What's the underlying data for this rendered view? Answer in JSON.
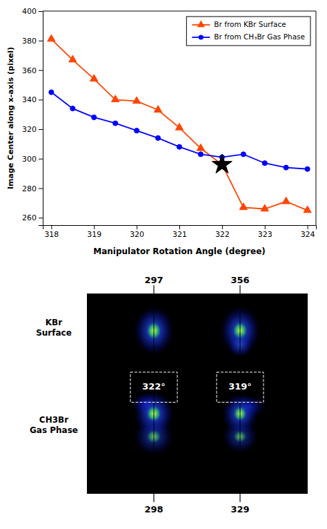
{
  "chart_data": [
    {
      "type": "line",
      "xlabel": "Manipulator Rotation Angle (degree)",
      "ylabel": "Image Center along x-axis (pixel)",
      "xlim": [
        317.8,
        324.2
      ],
      "ylim": [
        255,
        400
      ],
      "xticks": [
        318,
        319,
        320,
        321,
        322,
        323,
        324
      ],
      "yticks": [
        260,
        280,
        300,
        320,
        340,
        360,
        380,
        400
      ],
      "legend": "upper right",
      "series": [
        {
          "name": "Br from KBr Surface",
          "color": "#FF4500",
          "marker": "triangle",
          "x": [
            318.0,
            318.5,
            319.0,
            319.5,
            320.0,
            320.5,
            321.0,
            321.5,
            322.0,
            322.5,
            323.0,
            323.5,
            324.0
          ],
          "values": [
            381,
            367,
            354,
            340,
            339,
            333,
            321,
            307,
            296,
            267,
            266,
            271,
            265
          ]
        },
        {
          "name": "Br from CH₃Br Gas Phase",
          "color": "#0000FF",
          "marker": "circle",
          "x": [
            318.0,
            318.5,
            319.0,
            319.5,
            320.0,
            320.5,
            321.0,
            321.5,
            322.0,
            322.5,
            323.0,
            323.5,
            324.0
          ],
          "values": [
            345,
            334,
            328,
            324,
            319,
            314,
            308,
            303,
            301,
            303,
            297,
            294,
            293
          ]
        },
        {
          "type": "scatter",
          "color": "#000000",
          "marker": "star",
          "x": [
            322.0
          ],
          "values": [
            296
          ]
        }
      ]
    },
    {
      "type": "image",
      "top_labels": [
        "297",
        "356"
      ],
      "bottom_labels": [
        "298",
        "329"
      ],
      "angle_labels": [
        "322°",
        "319°"
      ],
      "row_labels": [
        "KBr\nSurface",
        "CH3Br\nGas Phase"
      ]
    }
  ]
}
